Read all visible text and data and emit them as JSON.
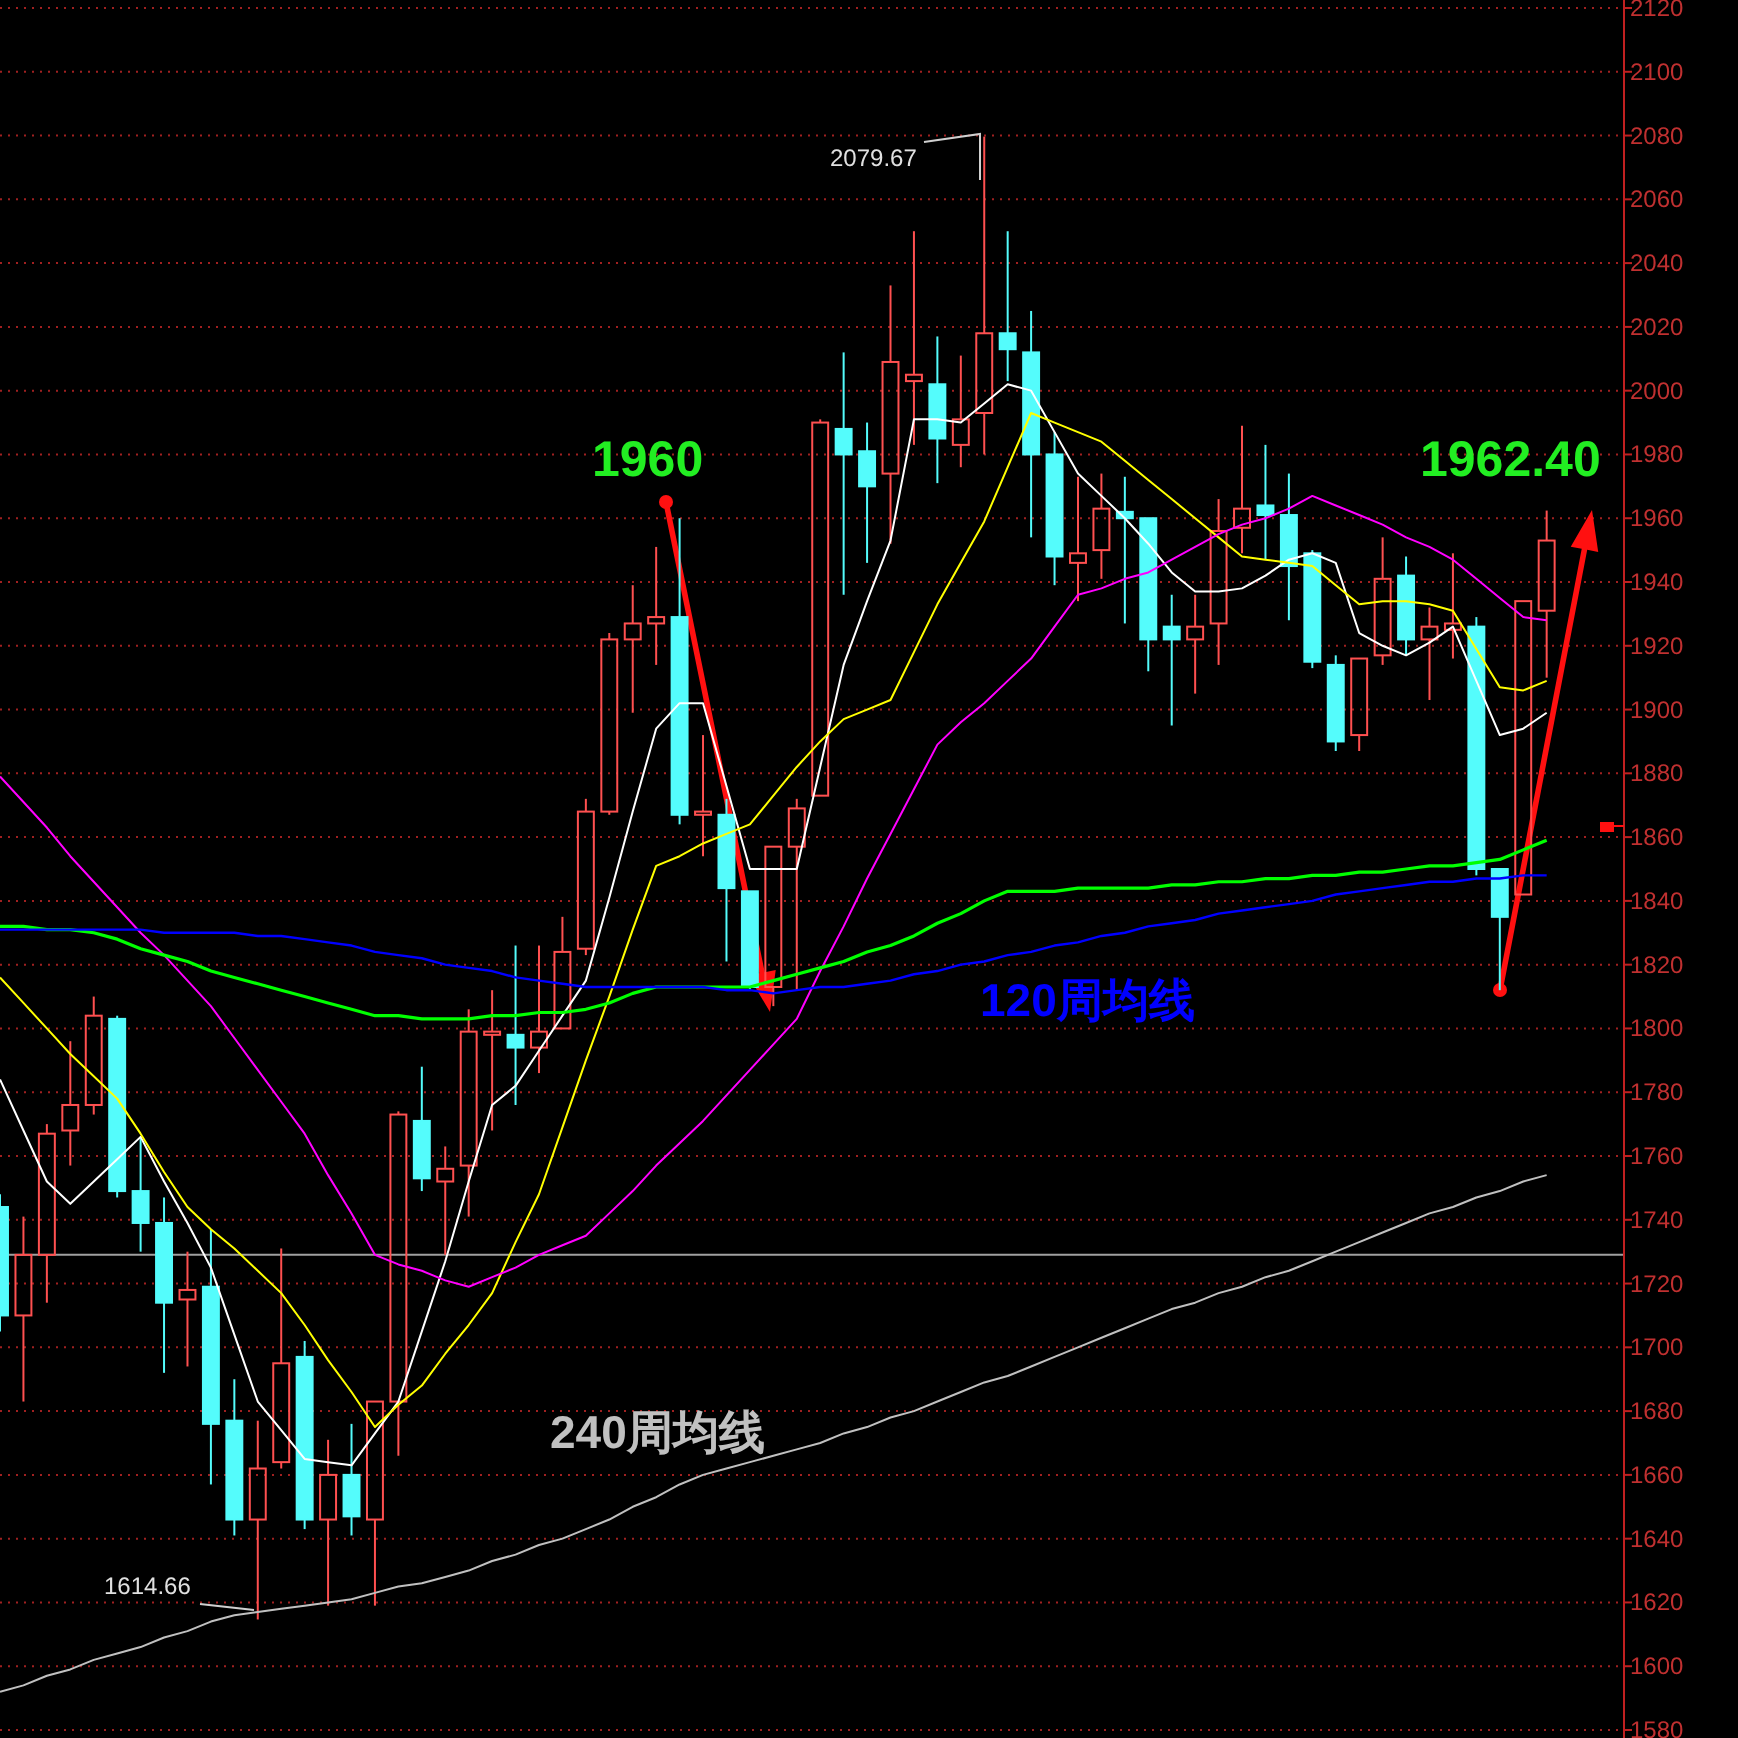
{
  "chart_data": {
    "type": "candlestick",
    "categories": [
      null,
      null,
      null,
      null,
      null,
      null,
      null,
      null,
      null,
      null,
      null,
      null,
      null,
      null,
      null,
      null,
      null,
      null,
      null,
      null,
      null,
      null,
      null,
      null,
      null,
      null,
      null,
      null,
      null,
      null,
      null,
      null,
      null,
      null,
      null,
      null,
      null,
      null,
      null,
      null,
      null,
      null,
      null,
      null,
      null,
      null,
      null,
      null,
      null,
      null,
      null,
      null,
      null,
      null,
      null,
      null,
      null,
      null,
      null,
      null,
      null,
      null,
      null,
      null,
      null,
      null,
      null
    ],
    "ohlc": [
      [
        1744,
        1748,
        1705,
        1710
      ],
      [
        1710,
        1741,
        1683,
        1729
      ],
      [
        1729,
        1770,
        1714,
        1767
      ],
      [
        1768,
        1796,
        1757,
        1776
      ],
      [
        1776,
        1810,
        1773,
        1804
      ],
      [
        1803,
        1804,
        1747,
        1749
      ],
      [
        1749,
        1766,
        1730,
        1739
      ],
      [
        1739,
        1747,
        1692,
        1714
      ],
      [
        1715,
        1730,
        1694,
        1718
      ],
      [
        1719,
        1737,
        1657,
        1676
      ],
      [
        1677,
        1690,
        1641,
        1646
      ],
      [
        1646,
        1677,
        1614.66,
        1662
      ],
      [
        1664,
        1731,
        1662,
        1695
      ],
      [
        1697,
        1702,
        1643,
        1646
      ],
      [
        1646,
        1671,
        1619,
        1660
      ],
      [
        1660,
        1676,
        1641,
        1647
      ],
      [
        1646,
        1683,
        1619,
        1683
      ],
      [
        1683,
        1774,
        1666,
        1773
      ],
      [
        1771,
        1788,
        1749,
        1753
      ],
      [
        1752,
        1763,
        1729,
        1756
      ],
      [
        1757,
        1806,
        1741,
        1799
      ],
      [
        1798,
        1812,
        1768,
        1799
      ],
      [
        1798,
        1826,
        1776,
        1794
      ],
      [
        1794,
        1826,
        1786,
        1799
      ],
      [
        1800,
        1835,
        1800,
        1824
      ],
      [
        1825,
        1872,
        1823,
        1868
      ],
      [
        1868,
        1924,
        1867,
        1922
      ],
      [
        1922,
        1939,
        1899,
        1927
      ],
      [
        1927,
        1951,
        1914,
        1929
      ],
      [
        1929,
        1960,
        1864,
        1867
      ],
      [
        1867,
        1892,
        1854,
        1868
      ],
      [
        1867,
        1872,
        1821,
        1844
      ],
      [
        1843,
        1843,
        1812,
        1813
      ],
      [
        1813,
        1857,
        1807,
        1857
      ],
      [
        1857,
        1872,
        1812,
        1869
      ],
      [
        1873,
        1991,
        1873,
        1990
      ],
      [
        1988,
        2012,
        1936,
        1980
      ],
      [
        1981,
        1990,
        1946,
        1970
      ],
      [
        1974,
        2033,
        1952,
        2009
      ],
      [
        2003,
        2050,
        1983,
        2005
      ],
      [
        2002,
        2017,
        1971,
        1985
      ],
      [
        1983,
        2011,
        1976,
        1991
      ],
      [
        1993,
        2079.67,
        1980,
        2018
      ],
      [
        2018,
        2050,
        2003,
        2013
      ],
      [
        2012,
        2025,
        1954,
        1980
      ],
      [
        1980,
        1987,
        1939,
        1948
      ],
      [
        1946,
        1973,
        1934,
        1949
      ],
      [
        1950,
        1974,
        1941,
        1963
      ],
      [
        1962,
        1973,
        1927,
        1960
      ],
      [
        1960,
        1960,
        1912,
        1922
      ],
      [
        1926,
        1936,
        1895,
        1922
      ],
      [
        1922,
        1936,
        1905,
        1926
      ],
      [
        1927,
        1966,
        1914,
        1956
      ],
      [
        1957,
        1989,
        1949,
        1963
      ],
      [
        1964,
        1983,
        1947,
        1961
      ],
      [
        1961,
        1974,
        1928,
        1945
      ],
      [
        1949,
        1950,
        1913,
        1915
      ],
      [
        1914,
        1917,
        1887,
        1890
      ],
      [
        1892,
        1916,
        1887,
        1916
      ],
      [
        1917,
        1954,
        1914,
        1941
      ],
      [
        1942,
        1948,
        1917,
        1922
      ],
      [
        1922,
        1932,
        1903,
        1926
      ],
      [
        1925,
        1949,
        1916,
        1927
      ],
      [
        1926,
        1929,
        1848,
        1850
      ],
      [
        1850,
        1850,
        1812,
        1835
      ],
      [
        1842,
        1934,
        1842,
        1934
      ],
      [
        1931,
        1962.4,
        1910,
        1953
      ]
    ],
    "series": [
      {
        "type": "line",
        "color": "#ffffff",
        "values": [
          1784,
          1768,
          1752,
          1745,
          1752,
          1759,
          1766,
          1752,
          1739,
          1725,
          1704,
          1683,
          1674,
          1665,
          1664,
          1663,
          1673,
          1683,
          1705,
          1727,
          1752,
          1776,
          1782,
          1793,
          1804,
          1815,
          1841,
          1868,
          1894,
          1902,
          1902,
          1876,
          1850,
          1850,
          1850,
          1882,
          1914,
          1934,
          1953,
          1991,
          1991,
          1990,
          1996,
          2002,
          2000,
          1987,
          1974,
          1967,
          1960,
          1952,
          1943,
          1937,
          1937,
          1938,
          1942,
          1947,
          1949,
          1946,
          1924,
          1920,
          1917,
          1921,
          1926,
          1909,
          1892,
          1894,
          1899
        ]
      },
      {
        "type": "line",
        "color": "#ffff00",
        "values": [
          1816,
          1808,
          1800,
          1792,
          1785,
          1778,
          1767,
          1755,
          1744,
          1737,
          1731,
          1724,
          1717,
          1707,
          1696,
          1686,
          1675,
          1682,
          1688,
          1698,
          1707,
          1717,
          1733,
          1748,
          1769,
          1790,
          1810,
          1831,
          1851,
          1854,
          1858,
          1861,
          1864,
          1873,
          1882,
          1890,
          1897,
          1900,
          1903,
          1918,
          1933,
          1946,
          1959,
          1976,
          1993,
          1990,
          1987,
          1984,
          1978,
          1972,
          1966,
          1960,
          1954,
          1948,
          1947,
          1946,
          1945,
          1939,
          1933,
          1934,
          1934,
          1933,
          1931,
          1919,
          1907,
          1906,
          1909
        ]
      },
      {
        "type": "line",
        "color": "#ff00ff",
        "values": [
          1879,
          1871,
          1863,
          1854,
          1846,
          1838,
          1830,
          1823,
          1815,
          1807,
          1797,
          1787,
          1777,
          1767,
          1754,
          1742,
          1729,
          1726,
          1724,
          1721,
          1719,
          1722,
          1725,
          1729,
          1732,
          1735,
          1742,
          1749,
          1757,
          1764,
          1771,
          1779,
          1787,
          1795,
          1803,
          1818,
          1832,
          1847,
          1861,
          1875,
          1889,
          1896,
          1902,
          1909,
          1916,
          1926,
          1936,
          1938,
          1941,
          1943,
          1947,
          1951,
          1955,
          1958,
          1960,
          1963,
          1967,
          1964,
          1961,
          1958,
          1954,
          1951,
          1947,
          1941,
          1935,
          1929,
          1928
        ]
      },
      {
        "type": "line",
        "color": "#00ff00",
        "values": [
          1832,
          1832,
          1831,
          1831,
          1830,
          1828,
          1825,
          1823,
          1821,
          1818,
          1816,
          1814,
          1812,
          1810,
          1808,
          1806,
          1804,
          1804,
          1803,
          1803,
          1803,
          1804,
          1804,
          1805,
          1805,
          1806,
          1808,
          1811,
          1813,
          1813,
          1813,
          1813,
          1813,
          1815,
          1817,
          1819,
          1821,
          1824,
          1826,
          1829,
          1833,
          1836,
          1840,
          1843,
          1843,
          1843,
          1844,
          1844,
          1844,
          1844,
          1845,
          1845,
          1846,
          1846,
          1847,
          1847,
          1848,
          1848,
          1849,
          1849,
          1850,
          1851,
          1851,
          1852,
          1853,
          1856,
          1859
        ]
      },
      {
        "type": "line",
        "name": "120周均线",
        "color": "#0000ff",
        "values": [
          1831,
          1831,
          1831,
          1831,
          1831,
          1831,
          1831,
          1830,
          1830,
          1830,
          1830,
          1829,
          1829,
          1828,
          1827,
          1826,
          1824,
          1823,
          1822,
          1820,
          1819,
          1818,
          1816,
          1815,
          1814,
          1813,
          1813,
          1813,
          1813,
          1813,
          1813,
          1812,
          1812,
          1811,
          1812,
          1813,
          1813,
          1814,
          1815,
          1817,
          1818,
          1820,
          1821,
          1823,
          1824,
          1826,
          1827,
          1829,
          1830,
          1832,
          1833,
          1834,
          1836,
          1837,
          1838,
          1839,
          1840,
          1842,
          1843,
          1844,
          1845,
          1846,
          1846,
          1847,
          1847,
          1848,
          1848
        ]
      },
      {
        "type": "line",
        "name": "240周均线",
        "color": "#c0c0c0",
        "values": [
          1592,
          1594,
          1597,
          1599,
          1602,
          1604,
          1606,
          1609,
          1611,
          1614,
          1616,
          1617,
          1618,
          1619,
          1620,
          1621,
          1623,
          1625,
          1626,
          1628,
          1630,
          1633,
          1635,
          1638,
          1640,
          1643,
          1646,
          1650,
          1653,
          1657,
          1660,
          1662,
          1664,
          1666,
          1668,
          1670,
          1673,
          1675,
          1678,
          1680,
          1683,
          1686,
          1689,
          1691,
          1694,
          1697,
          1700,
          1703,
          1706,
          1709,
          1712,
          1714,
          1717,
          1719,
          1722,
          1724,
          1727,
          1730,
          1733,
          1736,
          1739,
          1742,
          1744,
          1747,
          1749,
          1752,
          1754
        ]
      }
    ],
    "colors": [
      "#54fcfc",
      "#ff5050",
      "#ff5050",
      "#ff5050",
      "#ff5050",
      "#54fcfc",
      "#54fcfc",
      "#54fcfc",
      "#ff5050",
      "#54fcfc",
      "#54fcfc",
      "#ff5050",
      "#ff5050",
      "#54fcfc",
      "#ff5050",
      "#54fcfc",
      "#ff5050",
      "#ff5050",
      "#54fcfc",
      "#ff5050",
      "#ff5050",
      "#ff5050",
      "#54fcfc",
      "#ff5050",
      "#ff5050",
      "#ff5050",
      "#ff5050",
      "#ff5050",
      "#ff5050",
      "#54fcfc",
      "#ff5050",
      "#54fcfc",
      "#54fcfc",
      "#ff5050",
      "#ff5050",
      "#ff5050",
      "#54fcfc",
      "#54fcfc",
      "#ff5050",
      "#ff5050",
      "#54fcfc",
      "#ff5050",
      "#ff5050",
      "#54fcfc",
      "#54fcfc",
      "#54fcfc",
      "#ff5050",
      "#ff5050",
      "#54fcfc",
      "#54fcfc",
      "#54fcfc",
      "#ff5050",
      "#ff5050",
      "#ff5050",
      "#54fcfc",
      "#54fcfc",
      "#54fcfc",
      "#54fcfc",
      "#ff5050",
      "#ff5050",
      "#54fcfc",
      "#ff5050",
      "#ff5050",
      "#54fcfc",
      "#54fcfc",
      "#ff5050",
      "#ff5050"
    ],
    "ylim": [
      1580,
      2120
    ],
    "yticks": [
      1580,
      1600,
      1620,
      1640,
      1660,
      1680,
      1700,
      1720,
      1740,
      1760,
      1780,
      1800,
      1820,
      1840,
      1860,
      1880,
      1900,
      1920,
      1940,
      1960,
      1980,
      2000,
      2020,
      2040,
      2060,
      2080,
      2100,
      2120
    ],
    "grid": "y",
    "tick_labels": "y",
    "ref_lines": [
      {
        "axis": "y",
        "value": 1729,
        "color": "#a0a0a0"
      }
    ],
    "annotations": [
      "2079.67",
      "1614.66",
      "1960",
      "1962.40"
    ]
  }
}
